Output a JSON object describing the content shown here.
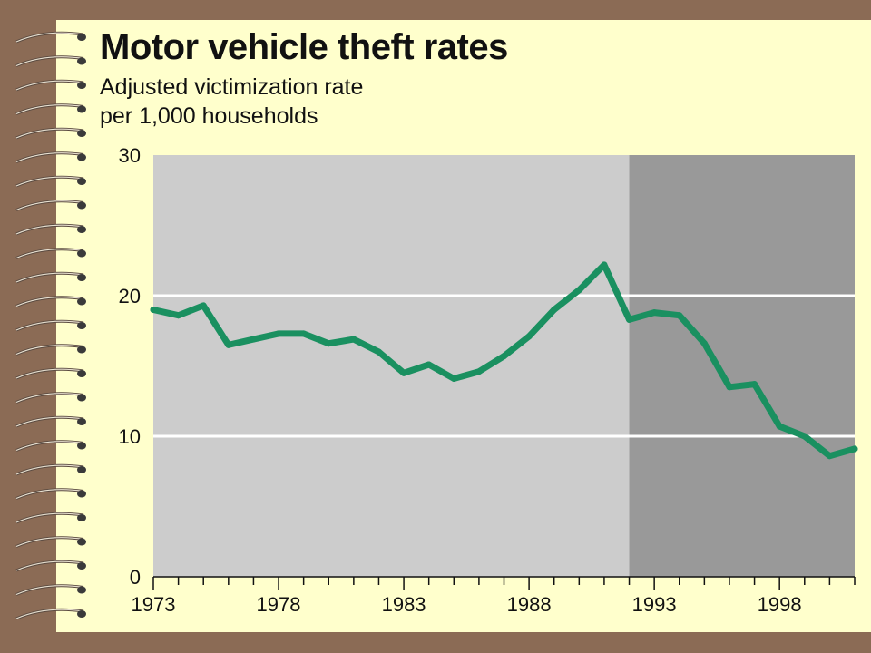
{
  "chart_data": {
    "type": "line",
    "title": "Motor vehicle theft rates",
    "subtitle_lines": [
      "Adjusted victimization rate",
      "per 1,000 households"
    ],
    "xlabel": "",
    "ylabel": "",
    "xlim": [
      1973,
      2001
    ],
    "ylim": [
      0,
      30
    ],
    "y_ticks": [
      0,
      10,
      20,
      30
    ],
    "x_tick_labels": [
      1973,
      1978,
      1983,
      1988,
      1993,
      1998
    ],
    "grid": "horizontal",
    "shaded_region": {
      "from": 1992,
      "to": 2001
    },
    "series_color": "#1a9060",
    "plot_bg_light": "#cccccc",
    "plot_bg_dark": "#999999",
    "x": [
      1973,
      1974,
      1975,
      1976,
      1977,
      1978,
      1979,
      1980,
      1981,
      1982,
      1983,
      1984,
      1985,
      1986,
      1987,
      1988,
      1989,
      1990,
      1991,
      1992,
      1993,
      1994,
      1995,
      1996,
      1997,
      1998,
      1999,
      2000,
      2001
    ],
    "values": [
      19.0,
      18.6,
      19.3,
      16.5,
      16.9,
      17.3,
      17.3,
      16.6,
      16.9,
      16.0,
      14.5,
      15.1,
      14.1,
      14.6,
      15.7,
      17.1,
      19.0,
      20.4,
      22.2,
      18.3,
      18.8,
      18.6,
      16.6,
      13.5,
      13.7,
      10.7,
      10.0,
      8.6,
      9.1
    ]
  }
}
